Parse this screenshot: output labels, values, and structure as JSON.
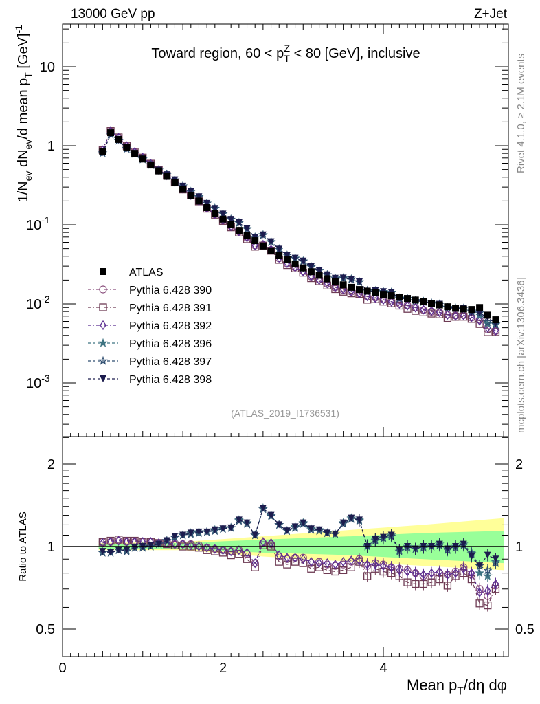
{
  "chart_data": {
    "type": "scatter",
    "header_left": "13000 GeV pp",
    "header_right": "Z+Jet",
    "title": "Toward region, 60 < p_{T}^{Z} < 80 [GeV], inclusive",
    "ylabel": "1/N_{ev} dN_{ev}/d mean p_{T} [GeV]^{-1}",
    "xlabel": "Mean p_{T}/dη dφ",
    "ratio_ylabel": "Ratio to ATLAS",
    "analysis_label": "(ATLAS_2019_I1736531)",
    "side_label_top": "Rivet 4.1.0, ≥ 2.1M events",
    "side_label_bottom": "mcplots.cern.ch [arXiv:1306.3436]",
    "xlim": [
      0,
      5.56
    ],
    "ylim": [
      0.00021,
      34.7
    ],
    "yscale": "log",
    "ratio_ylim": [
      0.397,
      2.52
    ],
    "ratio_yscale": "log",
    "x_ticks": [
      "0",
      "2",
      "4"
    ],
    "y_ticks": [
      {
        "base": "10",
        "exp": ""
      },
      {
        "base": "1",
        "exp": ""
      },
      {
        "base": "10",
        "exp": "-1"
      },
      {
        "base": "10",
        "exp": "-2"
      },
      {
        "base": "10",
        "exp": "-3"
      }
    ],
    "ratio_ticks": [
      "2",
      "1",
      "0.5"
    ],
    "x": [
      0.5,
      0.6,
      0.7,
      0.8,
      0.9,
      1.0,
      1.1,
      1.2,
      1.3,
      1.4,
      1.5,
      1.6,
      1.7,
      1.8,
      1.9,
      2.0,
      2.1,
      2.2,
      2.3,
      2.4,
      2.5,
      2.6,
      2.7,
      2.8,
      2.9,
      3.0,
      3.1,
      3.2,
      3.3,
      3.4,
      3.5,
      3.6,
      3.7,
      3.8,
      3.9,
      4.0,
      4.1,
      4.2,
      4.3,
      4.4,
      4.5,
      4.6,
      4.7,
      4.8,
      4.9,
      5.0,
      5.1,
      5.2,
      5.3,
      5.4
    ],
    "atlas": {
      "name": "ATLAS",
      "color": "#000000",
      "values": [
        0.85,
        1.46,
        1.2,
        0.95,
        0.8,
        0.68,
        0.57,
        0.48,
        0.41,
        0.34,
        0.28,
        0.235,
        0.2,
        0.165,
        0.14,
        0.118,
        0.1,
        0.085,
        0.073,
        0.063,
        0.054,
        0.047,
        0.041,
        0.036,
        0.032,
        0.0285,
        0.0255,
        0.023,
        0.0208,
        0.019,
        0.0174,
        0.0162,
        0.0152,
        0.0145,
        0.0138,
        0.0132,
        0.0127,
        0.0122,
        0.0117,
        0.0112,
        0.0107,
        0.0102,
        0.0097,
        0.0092,
        0.0088,
        0.0086,
        0.0085,
        0.009,
        0.0072,
        0.0063
      ]
    },
    "band": {
      "x": [
        0.4,
        1.5,
        2.5,
        3.6,
        4.5,
        5.5
      ],
      "stat_lo": [
        0.98,
        0.98,
        0.95,
        0.93,
        0.9,
        0.87
      ],
      "stat_hi": [
        1.02,
        1.03,
        1.06,
        1.09,
        1.12,
        1.14
      ],
      "total_lo": [
        0.97,
        0.97,
        0.92,
        0.88,
        0.85,
        0.82
      ],
      "total_hi": [
        1.03,
        1.04,
        1.09,
        1.15,
        1.2,
        1.27
      ],
      "stat_color": "#99ff99",
      "total_color": "#ffff99"
    },
    "series": [
      {
        "name": "Pythia 6.428 390",
        "marker": "circle-open",
        "dash": "dashdot",
        "color": "#8a4f7d",
        "ratio": [
          1.04,
          1.04,
          1.05,
          1.04,
          1.04,
          1.04,
          1.04,
          1.03,
          1.03,
          1.02,
          1.02,
          1.02,
          1.01,
          0.99,
          0.98,
          0.97,
          0.96,
          0.97,
          0.94,
          0.87,
          1.03,
          1.02,
          0.92,
          0.9,
          0.91,
          0.91,
          0.87,
          0.88,
          0.86,
          0.85,
          0.86,
          0.88,
          0.9,
          0.85,
          0.87,
          0.86,
          0.84,
          0.83,
          0.82,
          0.8,
          0.78,
          0.78,
          0.8,
          0.79,
          0.81,
          0.84,
          0.79,
          0.7,
          0.66,
          0.72
        ]
      },
      {
        "name": "Pythia 6.428 391",
        "marker": "square-open",
        "dash": "dashdot",
        "color": "#6e3b54",
        "ratio": [
          1.04,
          1.05,
          1.06,
          1.05,
          1.05,
          1.04,
          1.04,
          1.03,
          1.02,
          1.01,
          1.0,
          1.0,
          0.99,
          0.97,
          0.96,
          0.95,
          0.93,
          0.94,
          0.9,
          0.84,
          1.01,
          1.0,
          0.88,
          0.86,
          0.88,
          0.87,
          0.83,
          0.84,
          0.82,
          0.81,
          0.82,
          0.84,
          0.88,
          0.78,
          0.83,
          0.81,
          0.8,
          0.78,
          0.74,
          0.73,
          0.73,
          0.74,
          0.76,
          0.72,
          0.78,
          0.8,
          0.76,
          0.62,
          0.61,
          0.7
        ]
      },
      {
        "name": "Pythia 6.428 392",
        "marker": "diamond-open",
        "dash": "dashdot",
        "color": "#5b2d91",
        "ratio": [
          1.03,
          1.04,
          1.05,
          1.04,
          1.04,
          1.04,
          1.04,
          1.03,
          1.03,
          1.02,
          1.02,
          1.01,
          1.0,
          0.99,
          0.98,
          0.97,
          0.96,
          0.97,
          0.95,
          0.87,
          1.04,
          1.03,
          0.93,
          0.91,
          0.91,
          0.9,
          0.88,
          0.87,
          0.87,
          0.86,
          0.88,
          0.89,
          0.89,
          0.86,
          0.86,
          0.85,
          0.84,
          0.82,
          0.81,
          0.8,
          0.79,
          0.8,
          0.81,
          0.79,
          0.8,
          0.83,
          0.8,
          0.68,
          0.69,
          0.73
        ]
      },
      {
        "name": "Pythia 6.428 396",
        "marker": "star-filled",
        "dash": "dashed",
        "color": "#3f7482",
        "ratio": [
          0.95,
          0.95,
          0.97,
          0.97,
          0.99,
          1.0,
          1.0,
          1.02,
          1.05,
          1.08,
          1.1,
          1.12,
          1.13,
          1.13,
          1.15,
          1.16,
          1.17,
          1.25,
          1.22,
          1.1,
          1.38,
          1.3,
          1.2,
          1.14,
          1.18,
          1.22,
          1.16,
          1.15,
          1.12,
          1.11,
          1.22,
          1.27,
          1.25,
          1.0,
          1.06,
          1.08,
          1.1,
          0.97,
          1.0,
          0.98,
          1.0,
          1.0,
          1.02,
          0.98,
          1.0,
          1.02,
          0.95,
          0.8,
          0.78,
          0.88
        ]
      },
      {
        "name": "Pythia 6.428 397",
        "marker": "star-open",
        "dash": "dashed",
        "color": "#2f4e70",
        "ratio": [
          0.95,
          0.95,
          0.97,
          0.96,
          0.99,
          0.99,
          1.0,
          1.02,
          1.05,
          1.08,
          1.1,
          1.11,
          1.12,
          1.13,
          1.14,
          1.16,
          1.17,
          1.24,
          1.21,
          1.1,
          1.37,
          1.29,
          1.2,
          1.14,
          1.17,
          1.21,
          1.15,
          1.14,
          1.12,
          1.11,
          1.21,
          1.26,
          1.24,
          1.01,
          1.05,
          1.07,
          1.09,
          0.96,
          0.99,
          0.98,
          0.99,
          1.0,
          1.01,
          0.97,
          0.99,
          1.01,
          0.94,
          0.85,
          0.82,
          0.87
        ]
      },
      {
        "name": "Pythia 6.428 398",
        "marker": "triangle-down-filled",
        "dash": "dashed",
        "color": "#1c1c4e",
        "ratio": [
          0.96,
          0.95,
          0.97,
          0.97,
          0.99,
          1.0,
          1.01,
          1.02,
          1.05,
          1.09,
          1.1,
          1.12,
          1.13,
          1.13,
          1.15,
          1.16,
          1.17,
          1.25,
          1.22,
          1.1,
          1.38,
          1.3,
          1.2,
          1.14,
          1.18,
          1.22,
          1.16,
          1.15,
          1.12,
          1.11,
          1.22,
          1.27,
          1.25,
          1.0,
          1.06,
          1.08,
          1.1,
          0.97,
          1.0,
          0.98,
          1.0,
          1.0,
          1.02,
          0.98,
          1.0,
          1.02,
          0.92,
          0.85,
          0.93,
          0.9
        ]
      }
    ]
  }
}
